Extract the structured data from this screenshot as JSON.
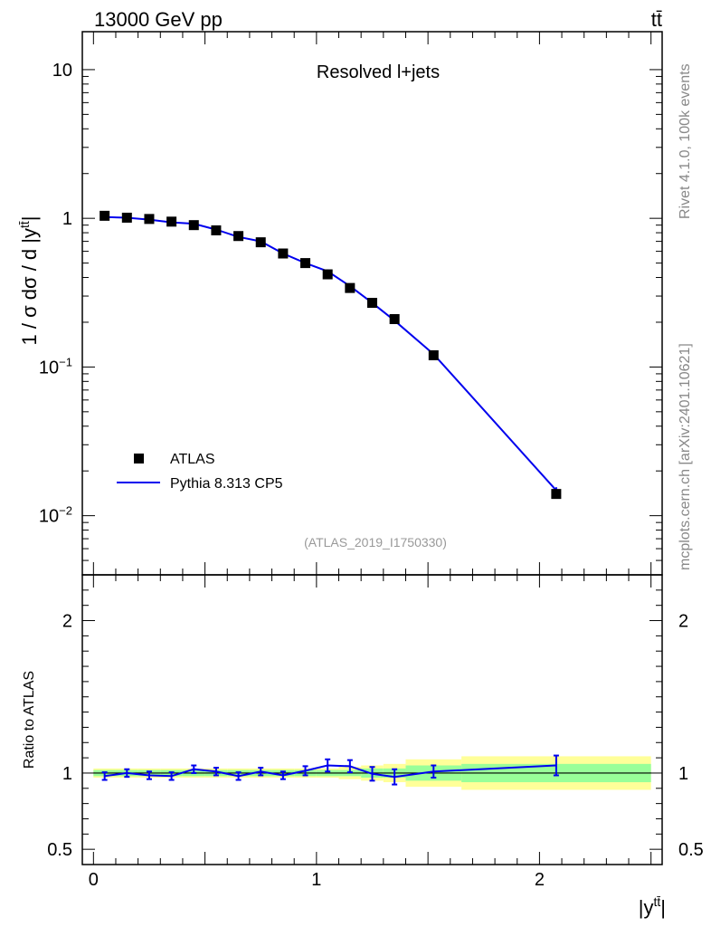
{
  "header": {
    "energy_label": "13000 GeV pp",
    "process_label": "tt̄"
  },
  "side_labels": {
    "rivet": "Rivet 4.1.0,  100k events",
    "source": "mcplots.cern.ch [arXiv:2401.10621]"
  },
  "chart_data": [
    {
      "type": "scatter",
      "panel": "main",
      "title": "Resolved l+jets",
      "analysis_tag": "(ATLAS_2019_I1750330)",
      "ylabel_prefix": "1 / σ dσ / d |y",
      "ylabel_sup": "tt̄",
      "ylabel_suffix": "|",
      "yscale": "log",
      "ylim": [
        0.004,
        18
      ],
      "xlim": [
        -0.05,
        2.55
      ],
      "yticks": [
        {
          "value": 0.01,
          "base": "10",
          "exp": "−2"
        },
        {
          "value": 0.1,
          "base": "10",
          "exp": "−1"
        },
        {
          "value": 1,
          "base": "1",
          "exp": ""
        },
        {
          "value": 10,
          "base": "10",
          "exp": ""
        }
      ],
      "legend": [
        {
          "name": "ATLAS",
          "marker": "square",
          "color": "#000000"
        },
        {
          "name": "Pythia 8.313 CP5",
          "marker": "line",
          "color": "#0000ee"
        }
      ],
      "legend_position": "lower-left",
      "series": [
        {
          "name": "ATLAS",
          "x": [
            0.05,
            0.15,
            0.25,
            0.35,
            0.45,
            0.55,
            0.65,
            0.75,
            0.85,
            0.95,
            1.05,
            1.15,
            1.25,
            1.35,
            1.525,
            2.075
          ],
          "y": [
            1.04,
            1.01,
            0.99,
            0.95,
            0.9,
            0.83,
            0.76,
            0.69,
            0.58,
            0.5,
            0.42,
            0.34,
            0.27,
            0.21,
            0.12,
            0.014
          ]
        },
        {
          "name": "Pythia 8.313 CP5",
          "x": [
            0.05,
            0.15,
            0.25,
            0.35,
            0.45,
            0.55,
            0.65,
            0.75,
            0.85,
            0.95,
            1.05,
            1.15,
            1.25,
            1.35,
            1.525,
            2.075
          ],
          "y": [
            1.02,
            1.01,
            0.98,
            0.94,
            0.92,
            0.84,
            0.75,
            0.7,
            0.58,
            0.5,
            0.44,
            0.35,
            0.27,
            0.205,
            0.122,
            0.0148
          ],
          "yerr_rel": [
            0.02,
            0.02,
            0.02,
            0.02,
            0.02,
            0.02,
            0.02,
            0.02,
            0.02,
            0.02,
            0.03,
            0.03,
            0.03,
            0.03,
            0.03,
            0.05
          ]
        }
      ]
    },
    {
      "type": "line",
      "panel": "ratio",
      "ylabel": "Ratio to ATLAS",
      "xlabel_prefix": "|y",
      "xlabel_sup": "tt̄",
      "xlabel_suffix": "|",
      "ylim": [
        0.4,
        2.3
      ],
      "xlim": [
        -0.05,
        2.55
      ],
      "yticks": [
        {
          "value": 0.5,
          "label": "0.5"
        },
        {
          "value": 1,
          "label": "1"
        },
        {
          "value": 2,
          "label": "2"
        }
      ],
      "xticks": [
        {
          "value": 0,
          "label": "0"
        },
        {
          "value": 1,
          "label": "1"
        },
        {
          "value": 2,
          "label": "2"
        }
      ],
      "bands": {
        "bins": [
          [
            0.0,
            0.1
          ],
          [
            0.1,
            0.2
          ],
          [
            0.2,
            0.3
          ],
          [
            0.3,
            0.4
          ],
          [
            0.4,
            0.5
          ],
          [
            0.5,
            0.6
          ],
          [
            0.6,
            0.7
          ],
          [
            0.7,
            0.8
          ],
          [
            0.8,
            0.9
          ],
          [
            0.9,
            1.0
          ],
          [
            1.0,
            1.1
          ],
          [
            1.1,
            1.2
          ],
          [
            1.2,
            1.3
          ],
          [
            1.3,
            1.4
          ],
          [
            1.4,
            1.65
          ],
          [
            1.65,
            2.5
          ]
        ],
        "stat_half_width": [
          0.02,
          0.02,
          0.02,
          0.02,
          0.02,
          0.02,
          0.02,
          0.02,
          0.02,
          0.02,
          0.02,
          0.02,
          0.03,
          0.03,
          0.05,
          0.06
        ],
        "total_half_width": [
          0.03,
          0.03,
          0.03,
          0.03,
          0.03,
          0.03,
          0.03,
          0.03,
          0.03,
          0.03,
          0.03,
          0.04,
          0.05,
          0.06,
          0.09,
          0.11
        ],
        "stat_color": "#99ff99",
        "total_color": "#ffff99"
      },
      "series": [
        {
          "name": "Pythia 8.313 CP5 / ATLAS",
          "x": [
            0.05,
            0.15,
            0.25,
            0.35,
            0.45,
            0.55,
            0.65,
            0.75,
            0.85,
            0.95,
            1.05,
            1.15,
            1.25,
            1.35,
            1.525,
            2.075
          ],
          "y": [
            0.98,
            1.0,
            0.985,
            0.98,
            1.025,
            1.01,
            0.98,
            1.01,
            0.985,
            1.015,
            1.05,
            1.045,
            0.995,
            0.975,
            1.01,
            1.05
          ],
          "yerr": [
            0.025,
            0.025,
            0.025,
            0.025,
            0.025,
            0.025,
            0.025,
            0.025,
            0.025,
            0.03,
            0.04,
            0.04,
            0.045,
            0.05,
            0.04,
            0.065
          ],
          "color": "#0000ee"
        }
      ]
    }
  ]
}
